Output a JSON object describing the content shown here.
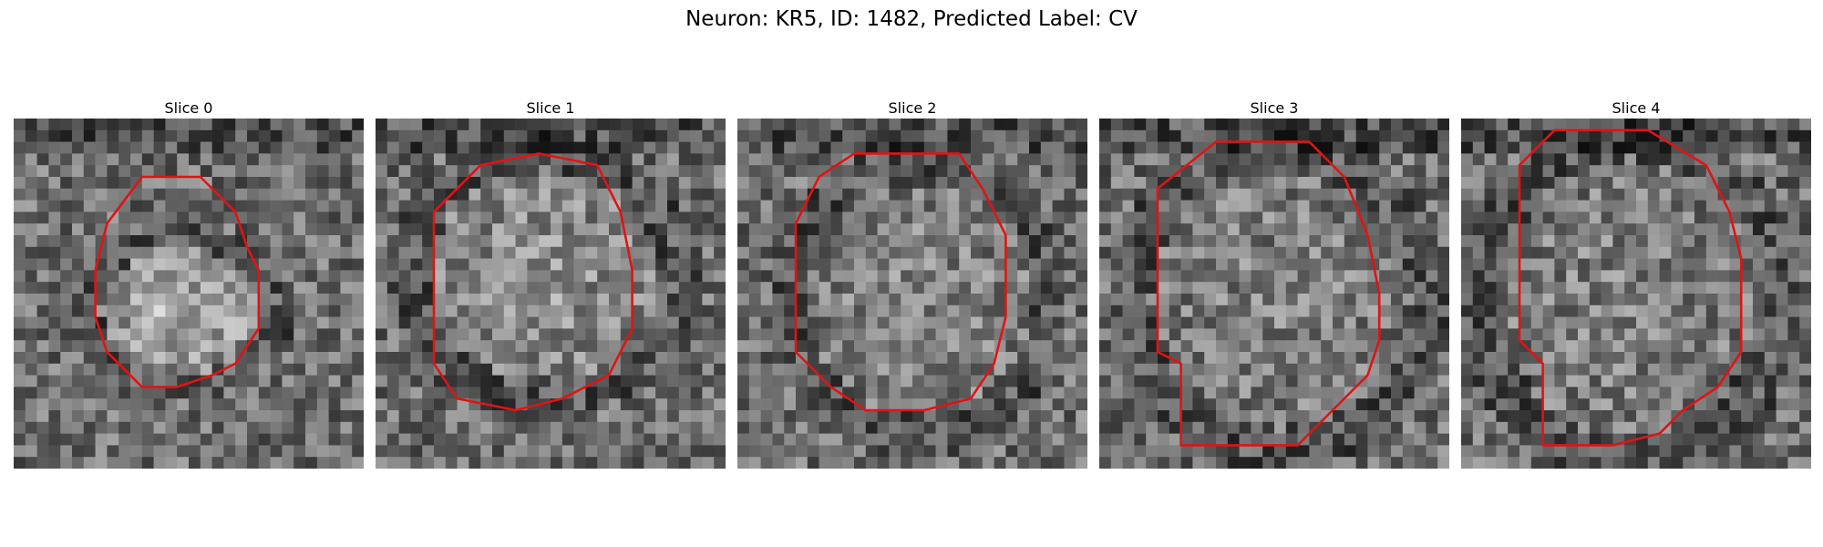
{
  "figure": {
    "title": "Neuron: KR5, ID: 1482, Predicted Label: CV",
    "contour_color": "#e01414",
    "colormap": "grayscale"
  },
  "panels": [
    {
      "title": "Slice 0"
    },
    {
      "title": "Slice 1"
    },
    {
      "title": "Slice 2"
    },
    {
      "title": "Slice 3"
    },
    {
      "title": "Slice 4"
    }
  ]
}
